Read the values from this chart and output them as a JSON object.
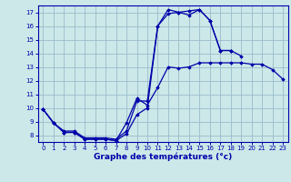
{
  "xlabel": "Graphe des températures (°c)",
  "bg_color": "#cce8e8",
  "line_color": "#0000aa",
  "grid_color": "#99bbcc",
  "xlim": [
    -0.5,
    23.5
  ],
  "ylim": [
    7.5,
    17.5
  ],
  "yticks": [
    8,
    9,
    10,
    11,
    12,
    13,
    14,
    15,
    16,
    17
  ],
  "xticks": [
    0,
    1,
    2,
    3,
    4,
    5,
    6,
    7,
    8,
    9,
    10,
    11,
    12,
    13,
    14,
    15,
    16,
    17,
    18,
    19,
    20,
    21,
    22,
    23
  ],
  "curve1_x": [
    0,
    1,
    2,
    3,
    4,
    5,
    6,
    7,
    8,
    9,
    10,
    11,
    12,
    13,
    14,
    15,
    16,
    17,
    18,
    19,
    20,
    21,
    22,
    23
  ],
  "curve1_y": [
    9.9,
    8.9,
    8.2,
    8.2,
    7.7,
    7.7,
    7.7,
    7.6,
    8.9,
    10.7,
    10.2,
    11.5,
    13.0,
    12.9,
    13.0,
    13.3,
    13.3,
    13.3,
    13.3,
    13.3,
    13.2,
    13.2,
    12.8,
    12.1
  ],
  "curve2_x": [
    0,
    1,
    2,
    3,
    4,
    5,
    6,
    7,
    8,
    9,
    10,
    11,
    12,
    13,
    14,
    15,
    16,
    17,
    18,
    19
  ],
  "curve2_y": [
    9.9,
    8.9,
    8.2,
    8.2,
    7.7,
    7.7,
    7.7,
    7.6,
    8.1,
    9.5,
    10.0,
    16.0,
    17.2,
    17.0,
    16.8,
    17.2,
    16.4,
    14.2,
    14.2,
    13.8
  ],
  "curve3_x": [
    0,
    1,
    2,
    3,
    4,
    5,
    6,
    7,
    8,
    9,
    10,
    11,
    12,
    13,
    14,
    15,
    16,
    17,
    18
  ],
  "curve3_y": [
    9.9,
    8.9,
    8.3,
    8.3,
    7.8,
    7.8,
    7.8,
    7.7,
    8.3,
    10.5,
    10.5,
    16.0,
    16.9,
    17.0,
    17.1,
    17.2,
    16.4,
    14.2,
    14.2
  ]
}
